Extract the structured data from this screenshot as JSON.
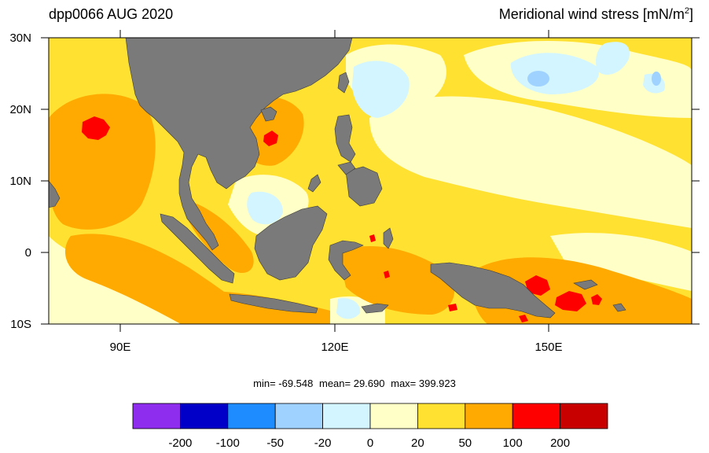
{
  "header": {
    "left_title": "dpp0066 AUG 2020",
    "right_title_main": "Meridional wind stress [mN/m",
    "right_title_sup": "2",
    "right_title_end": "]"
  },
  "map": {
    "lat_labels": [
      "30N",
      "20N",
      "10N",
      "0",
      "10S"
    ],
    "lon_labels": [
      "90E",
      "120E",
      "150E"
    ],
    "land_color": "#7a7a7a"
  },
  "stats": {
    "min_text": "min= -69.548",
    "mean_text": "mean=  29.690",
    "max_text": "max= 399.923"
  },
  "colorbar": {
    "colors": [
      "#8e2ded",
      "#0000c8",
      "#1e8cff",
      "#a0d2ff",
      "#d2f5ff",
      "#ffffc8",
      "#ffe132",
      "#ffaa00",
      "#ff0000",
      "#c80000"
    ],
    "labels": [
      "-200",
      "-100",
      "-50",
      "-20",
      "0",
      "20",
      "50",
      "100",
      "200"
    ]
  }
}
